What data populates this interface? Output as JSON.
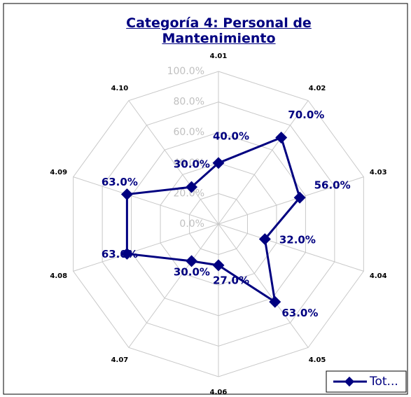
{
  "chart_data": {
    "type": "radar",
    "title": "Categoría 4: Personal de Mantenimiento",
    "categories": [
      "4.01",
      "4.02",
      "4.03",
      "4.04",
      "4.05",
      "4.06",
      "4.07",
      "4.08",
      "4.09",
      "4.10"
    ],
    "series": [
      {
        "name": "Tot...",
        "color": "#000080",
        "values": [
          40,
          70,
          56,
          32,
          63,
          27,
          30,
          63,
          63,
          30
        ],
        "value_labels": [
          "40.0%",
          "70.0%",
          "56.0%",
          "32.0%",
          "63.0%",
          "27.0%",
          "30.0%",
          "63.0%",
          "63.0%",
          "30.0%"
        ]
      }
    ],
    "ylim": [
      0,
      100
    ],
    "yticks": [
      {
        "value": 0,
        "label": "0.0%"
      },
      {
        "value": 20,
        "label": "20.0%"
      },
      {
        "value": 40,
        "label": "40.0%"
      },
      {
        "value": 60,
        "label": "60.0%"
      },
      {
        "value": 80,
        "label": "80.0%"
      },
      {
        "value": 100,
        "label": "100.0%"
      }
    ],
    "grid": true,
    "legend": "bottom-right"
  }
}
